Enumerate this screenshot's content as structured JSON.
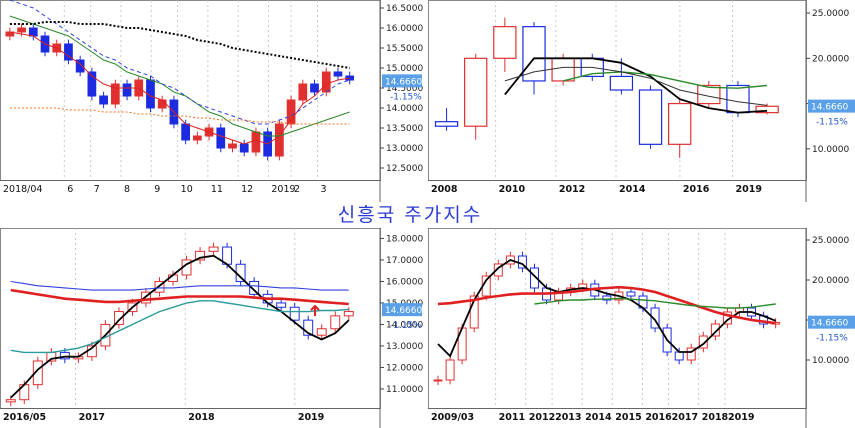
{
  "title": "신흥국 주가지수",
  "current_price": "14.6660",
  "change_pct": "-1.15%",
  "colors": {
    "up": "#e03030",
    "down": "#1a2be0",
    "ma_black": "#000000",
    "ma_red": "#e02020",
    "ma_green": "#2a8a2a",
    "ma_blue": "#3040e0",
    "ma_teal": "#2a9a9a",
    "badge": "#5aa0e8",
    "arrow": "#e02020"
  },
  "chart_data": [
    {
      "name_key": "daily",
      "type": "candlestick",
      "title": "",
      "x_ticks": [
        "2018/04",
        "6",
        "7",
        "8",
        "9",
        "10",
        "11",
        "12",
        "2019",
        "2",
        "3"
      ],
      "y_ticks": [
        "12.5000",
        "13.0000",
        "13.5000",
        "14.0000",
        "14.5000",
        "15.0000",
        "15.5000",
        "16.0000",
        "16.5000"
      ],
      "ylim": [
        12.3,
        16.6
      ],
      "series": [
        {
          "label": "price",
          "values": [
            15.9,
            16.0,
            15.8,
            15.4,
            15.6,
            15.2,
            14.9,
            14.3,
            14.1,
            14.6,
            14.3,
            14.7,
            14.0,
            14.2,
            13.6,
            13.2,
            13.3,
            13.5,
            13.0,
            13.1,
            12.9,
            13.4,
            12.8,
            13.6,
            14.2,
            14.6,
            14.4,
            14.9,
            14.8,
            14.7
          ]
        },
        {
          "label": "ma_short_red",
          "values": [
            15.9,
            15.85,
            15.8,
            15.6,
            15.5,
            15.3,
            15.1,
            14.8,
            14.6,
            14.5,
            14.5,
            14.5,
            14.3,
            14.2,
            13.9,
            13.6,
            13.5,
            13.4,
            13.3,
            13.2,
            13.1,
            13.2,
            13.1,
            13.3,
            13.7,
            14.1,
            14.3,
            14.6,
            14.7,
            14.75
          ]
        },
        {
          "label": "ma_mid_green",
          "values": [
            16.3,
            16.2,
            16.1,
            16.0,
            15.9,
            15.8,
            15.6,
            15.4,
            15.2,
            15.1,
            14.9,
            14.8,
            14.7,
            14.6,
            14.4,
            14.3,
            14.1,
            13.9,
            13.8,
            13.6,
            13.5,
            13.4,
            13.3,
            13.3,
            13.4,
            13.5,
            13.6,
            13.7,
            13.8,
            13.9
          ]
        },
        {
          "label": "ma_blue_dash",
          "values": [
            16.7,
            16.6,
            16.5,
            16.3,
            16.1,
            15.9,
            15.7,
            15.5,
            15.3,
            15.2,
            15.0,
            14.9,
            14.8,
            14.6,
            14.5,
            14.3,
            14.1,
            14.0,
            13.9,
            13.8,
            13.7,
            13.6,
            13.6,
            13.7,
            13.8,
            14.0,
            14.2,
            14.4,
            14.6,
            14.7
          ]
        },
        {
          "label": "ma_black_dot",
          "values": [
            16.1,
            16.1,
            16.1,
            16.15,
            16.15,
            16.15,
            16.1,
            16.1,
            16.1,
            16.05,
            16.0,
            16.0,
            15.95,
            15.9,
            15.85,
            15.8,
            15.7,
            15.65,
            15.6,
            15.5,
            15.45,
            15.4,
            15.35,
            15.3,
            15.25,
            15.2,
            15.15,
            15.1,
            15.05,
            15.0
          ]
        },
        {
          "label": "ma_orange_dot",
          "values": [
            14.0,
            14.0,
            14.0,
            14.0,
            14.0,
            13.95,
            13.95,
            13.95,
            13.9,
            13.9,
            13.9,
            13.85,
            13.85,
            13.8,
            13.8,
            13.8,
            13.75,
            13.75,
            13.7,
            13.7,
            13.7,
            13.65,
            13.65,
            13.65,
            13.6,
            13.6,
            13.6,
            13.6,
            13.6,
            13.6
          ]
        }
      ]
    },
    {
      "name_key": "yearly",
      "type": "candlestick",
      "title": "",
      "x_ticks": [
        "2008",
        "2010",
        "2012",
        "2014",
        "2016",
        "2019"
      ],
      "y_ticks": [
        "10.0000",
        "15.0000",
        "20.0000",
        "25.0000"
      ],
      "ylim": [
        7,
        26
      ],
      "candles": [
        {
          "x": 2008,
          "o": 13.0,
          "h": 14.5,
          "l": 12.0,
          "c": 12.5
        },
        {
          "x": 2009,
          "o": 12.5,
          "h": 20.5,
          "l": 11.0,
          "c": 20.0
        },
        {
          "x": 2010,
          "o": 20.0,
          "h": 24.5,
          "l": 18.5,
          "c": 23.5
        },
        {
          "x": 2011,
          "o": 23.5,
          "h": 24.0,
          "l": 16.0,
          "c": 17.5
        },
        {
          "x": 2012,
          "o": 17.5,
          "h": 20.5,
          "l": 17.0,
          "c": 20.0
        },
        {
          "x": 2013,
          "o": 20.0,
          "h": 20.5,
          "l": 17.5,
          "c": 18.0
        },
        {
          "x": 2014,
          "o": 18.0,
          "h": 20.0,
          "l": 16.0,
          "c": 16.5
        },
        {
          "x": 2015,
          "o": 16.5,
          "h": 17.0,
          "l": 10.0,
          "c": 10.5
        },
        {
          "x": 2016,
          "o": 10.5,
          "h": 15.5,
          "l": 9.0,
          "c": 15.0
        },
        {
          "x": 2017,
          "o": 15.0,
          "h": 17.5,
          "l": 14.5,
          "c": 17.0
        },
        {
          "x": 2018,
          "o": 17.0,
          "h": 17.5,
          "l": 13.5,
          "c": 14.0
        },
        {
          "x": 2019,
          "o": 14.0,
          "h": 15.0,
          "l": 13.8,
          "c": 14.7
        }
      ],
      "series": [
        {
          "label": "ma_black",
          "values": [
            null,
            null,
            16.0,
            20.0,
            20.0,
            20.0,
            19.5,
            18.0,
            15.5,
            14.5,
            14.0,
            14.2
          ]
        },
        {
          "label": "ma_green",
          "values": [
            null,
            null,
            null,
            null,
            17.5,
            18.3,
            18.5,
            18.2,
            17.5,
            16.8,
            16.7,
            17.0
          ]
        },
        {
          "label": "ma_gray",
          "values": [
            null,
            null,
            17.5,
            18.5,
            19.0,
            19.0,
            18.5,
            17.8,
            16.5,
            15.8,
            15.2,
            14.8
          ]
        }
      ]
    },
    {
      "name_key": "weekly",
      "type": "candlestick",
      "title": "",
      "x_ticks": [
        "2016/05",
        "2017",
        "2018",
        "2019"
      ],
      "y_ticks": [
        "11.0000",
        "12.0000",
        "13.0000",
        "14.0000",
        "15.0000",
        "16.0000",
        "17.0000",
        "18.0000"
      ],
      "ylim": [
        10.3,
        18.3
      ],
      "series": [
        {
          "label": "price",
          "values": [
            10.5,
            11.2,
            12.3,
            12.7,
            12.4,
            12.5,
            13.0,
            14.0,
            14.6,
            15.0,
            15.5,
            16.0,
            16.3,
            17.0,
            17.4,
            17.6,
            16.8,
            16.0,
            15.4,
            15.0,
            14.8,
            14.2,
            13.5,
            13.8,
            14.4,
            14.6
          ]
        },
        {
          "label": "ma_black",
          "values": [
            10.6,
            11.2,
            11.9,
            12.4,
            12.5,
            12.5,
            12.9,
            13.5,
            14.2,
            14.8,
            15.3,
            15.8,
            16.3,
            16.8,
            17.1,
            17.2,
            16.8,
            16.2,
            15.6,
            15.0,
            14.6,
            14.1,
            13.6,
            13.3,
            13.6,
            14.2
          ]
        },
        {
          "label": "ma_red",
          "values": [
            15.6,
            15.5,
            15.4,
            15.3,
            15.2,
            15.15,
            15.1,
            15.05,
            15.05,
            15.1,
            15.15,
            15.2,
            15.25,
            15.3,
            15.3,
            15.3,
            15.3,
            15.3,
            15.25,
            15.2,
            15.2,
            15.15,
            15.1,
            15.05,
            15.0,
            14.95
          ]
        },
        {
          "label": "ma_teal",
          "values": [
            12.8,
            12.7,
            12.7,
            12.7,
            12.8,
            12.9,
            13.1,
            13.4,
            13.7,
            14.0,
            14.3,
            14.6,
            14.8,
            15.0,
            15.1,
            15.1,
            15.0,
            14.9,
            14.8,
            14.7,
            14.6,
            14.6,
            14.6,
            14.65,
            14.65,
            14.7
          ]
        },
        {
          "label": "ma_blue",
          "values": [
            16.0,
            15.9,
            15.8,
            15.75,
            15.7,
            15.65,
            15.6,
            15.6,
            15.6,
            15.6,
            15.65,
            15.7,
            15.7,
            15.75,
            15.8,
            15.8,
            15.8,
            15.8,
            15.8,
            15.75,
            15.7,
            15.7,
            15.65,
            15.6,
            15.6,
            15.6
          ]
        }
      ]
    },
    {
      "name_key": "quarterly",
      "type": "candlestick",
      "title": "",
      "x_ticks": [
        "2009/03",
        "2011",
        "2012",
        "2013",
        "2014",
        "2015",
        "2016",
        "2017",
        "2018",
        "2019"
      ],
      "y_ticks": [
        "10.0000",
        "15.0000",
        "20.0000",
        "25.0000"
      ],
      "ylim": [
        4.5,
        26
      ],
      "series": [
        {
          "label": "price",
          "values": [
            7.5,
            10.0,
            14.0,
            18.0,
            20.5,
            22.0,
            23.0,
            21.5,
            19.0,
            17.5,
            18.5,
            19.0,
            19.5,
            18.0,
            17.5,
            18.5,
            18.0,
            16.5,
            14.0,
            11.0,
            10.0,
            11.5,
            13.0,
            14.5,
            16.0,
            16.5,
            15.5,
            14.5,
            14.7
          ]
        },
        {
          "label": "ma_black",
          "values": [
            12.0,
            10.5,
            14.0,
            17.5,
            20.0,
            21.5,
            22.5,
            22.0,
            20.5,
            19.0,
            18.5,
            18.8,
            19.0,
            18.8,
            18.3,
            18.0,
            17.5,
            16.5,
            15.0,
            12.5,
            11.0,
            11.0,
            12.0,
            13.5,
            15.0,
            16.0,
            16.0,
            15.5,
            14.9
          ]
        },
        {
          "label": "ma_red",
          "values": [
            17.0,
            17.1,
            17.3,
            17.5,
            17.8,
            18.0,
            18.2,
            18.3,
            18.3,
            18.3,
            18.4,
            18.5,
            18.7,
            18.9,
            19.0,
            19.1,
            19.0,
            18.8,
            18.5,
            18.0,
            17.5,
            17.0,
            16.5,
            16.0,
            15.6,
            15.3,
            15.0,
            14.8,
            14.6
          ]
        },
        {
          "label": "ma_green",
          "values": [
            null,
            null,
            null,
            null,
            null,
            null,
            null,
            null,
            17.0,
            17.2,
            17.4,
            17.5,
            17.5,
            17.6,
            17.6,
            17.7,
            17.6,
            17.5,
            17.4,
            17.2,
            17.0,
            16.8,
            16.7,
            16.6,
            16.5,
            16.5,
            16.6,
            16.8,
            17.0
          ]
        }
      ]
    }
  ]
}
